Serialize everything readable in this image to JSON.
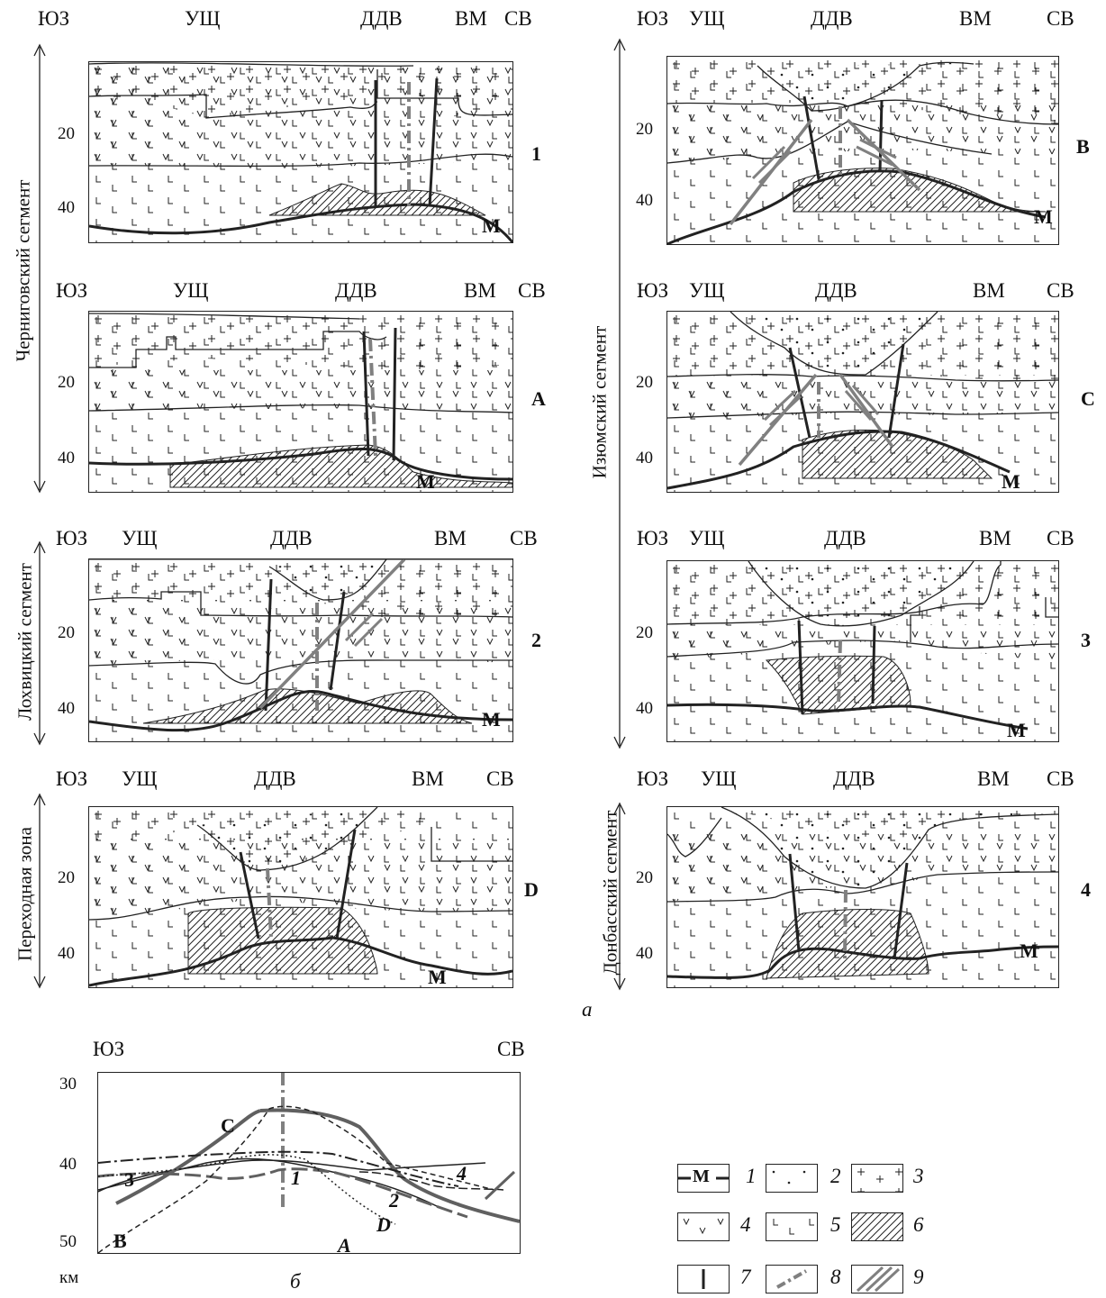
{
  "headers": {
    "sw": "ЮЗ",
    "ushch": "УЩ",
    "ddv": "ДДВ",
    "vm": "ВМ",
    "ne": "СВ"
  },
  "depth_ticks": {
    "t20": "20",
    "t40": "40"
  },
  "segments": {
    "chernigov": "Черниговский сегмент",
    "lokhvitsa": "Лохвицкий сегмент",
    "transition": "Переходная зона",
    "izyum": "Изюмский сегмент",
    "donbass": "Донбасский сегмент"
  },
  "panels": {
    "p1": "1",
    "pA": "A",
    "p2": "2",
    "pD": "D",
    "pB": "B",
    "pC": "C",
    "p3": "3",
    "p4": "4"
  },
  "moho_label": "M",
  "part_a_label": "а",
  "part_b": {
    "label": "б",
    "sw": "ЮЗ",
    "ne": "СВ",
    "y30": "30",
    "y40": "40",
    "y50": "50",
    "unit": "км",
    "curves": {
      "c3": "3",
      "c1": "1",
      "c4": "4",
      "c2": "2",
      "cD": "D",
      "cA": "A",
      "cB": "B",
      "cC": "C"
    }
  },
  "legend": [
    {
      "num": "1",
      "sym": "M"
    },
    {
      "num": "2"
    },
    {
      "num": "3"
    },
    {
      "num": "4"
    },
    {
      "num": "5"
    },
    {
      "num": "6"
    },
    {
      "num": "7"
    },
    {
      "num": "8"
    },
    {
      "num": "9"
    }
  ],
  "colors": {
    "fault_grey": "#808080",
    "line": "#222222"
  }
}
